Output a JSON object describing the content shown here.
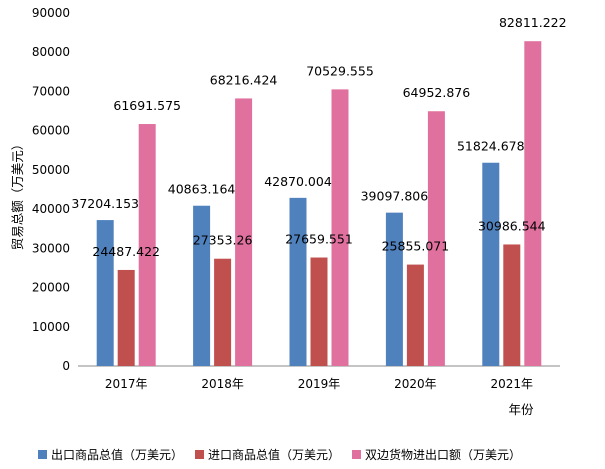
{
  "chart_data": {
    "type": "bar",
    "categories": [
      "2017年",
      "2018年",
      "2019年",
      "2020年",
      "2021年"
    ],
    "series": [
      {
        "name": "出口商品总值（万美元）",
        "values": [
          37204.153,
          40863.164,
          42870.004,
          39097.806,
          51824.678
        ],
        "labels": [
          "37204.153",
          "40863.164",
          "42870.004",
          "39097.806",
          "51824.678"
        ],
        "color": "#4f81bd"
      },
      {
        "name": "进口商品总值（万美元）",
        "values": [
          24487.422,
          27353.26,
          27659.551,
          25855.071,
          30986.544
        ],
        "labels": [
          "24487.422",
          "27353.26",
          "27659.551",
          "25855.071",
          "30986.544"
        ],
        "color": "#c0504d"
      },
      {
        "name": "双边货物进出口额（万美元）",
        "values": [
          61691.575,
          68216.424,
          70529.555,
          64952.876,
          82811.222
        ],
        "labels": [
          "61691.575",
          "68216.424",
          "70529.555",
          "64952.876",
          "82811.222"
        ],
        "color": "#e0719f"
      }
    ],
    "title": "",
    "xlabel": "年份",
    "ylabel": "贸易总额（万美元）",
    "ylim": [
      0,
      90000
    ],
    "yticks": [
      "0",
      "10000",
      "20000",
      "30000",
      "40000",
      "50000",
      "60000",
      "70000",
      "80000",
      "90000"
    ],
    "grid": false,
    "legend_position": "bottom"
  }
}
